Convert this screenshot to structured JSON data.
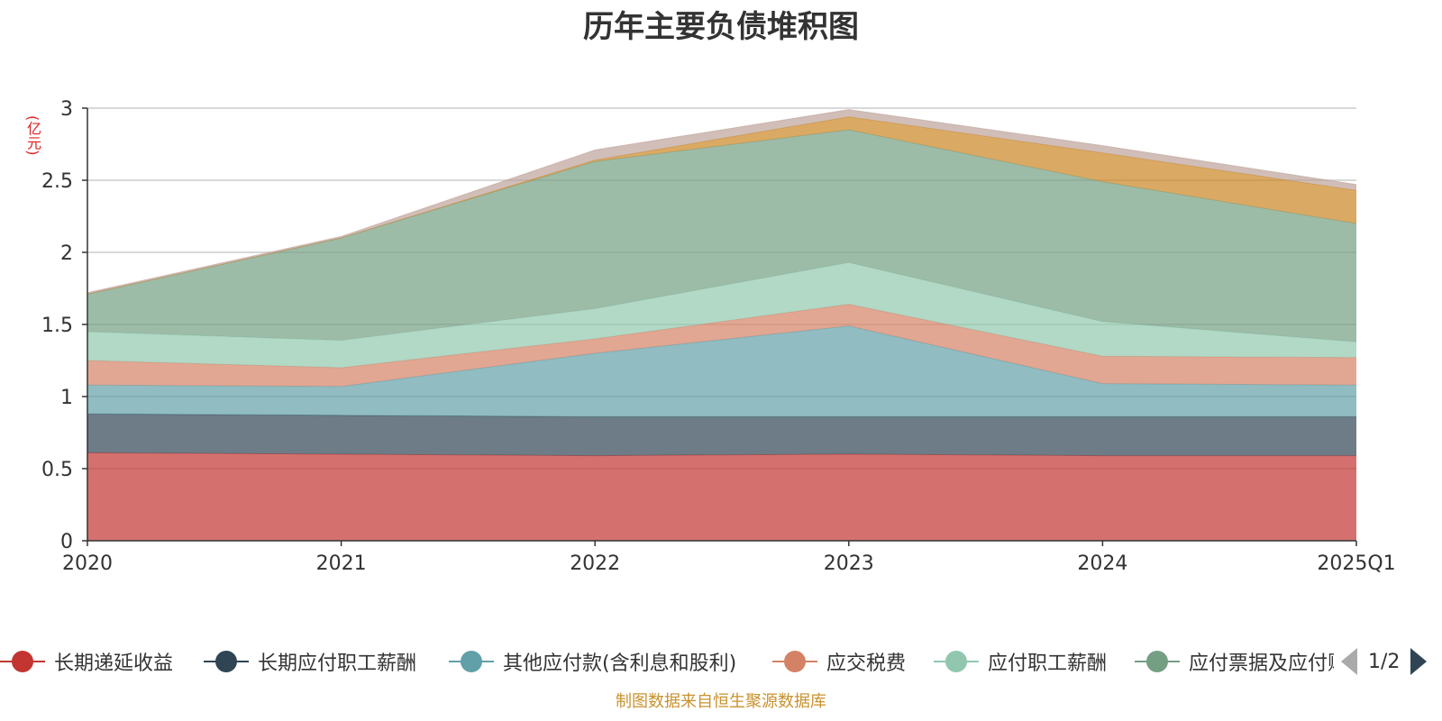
{
  "chart_data": {
    "type": "area",
    "stacked": true,
    "title": "历年主要负债堆积图",
    "unit_label": "(亿元)",
    "categories": [
      "2020",
      "2021",
      "2022",
      "2023",
      "2024",
      "2025Q1"
    ],
    "ylim": [
      0,
      3
    ],
    "yticks": [
      "0",
      "0.5",
      "1",
      "1.5",
      "2",
      "2.5",
      "3"
    ],
    "grid": true,
    "legend_position": "bottom",
    "series": [
      {
        "name": "长期递延收益",
        "color": "#c23531",
        "values": [
          0.61,
          0.6,
          0.59,
          0.6,
          0.59,
          0.59
        ]
      },
      {
        "name": "长期应付职工薪酬",
        "color": "#2f4554",
        "values": [
          0.27,
          0.27,
          0.27,
          0.26,
          0.27,
          0.27
        ]
      },
      {
        "name": "其他应付款(含利息和股利)",
        "color": "#61a0a8",
        "values": [
          0.2,
          0.2,
          0.44,
          0.63,
          0.23,
          0.22
        ]
      },
      {
        "name": "应交税费",
        "color": "#d48265",
        "values": [
          0.17,
          0.13,
          0.1,
          0.15,
          0.19,
          0.19
        ]
      },
      {
        "name": "应付职工薪酬",
        "color": "#91c7ae",
        "values": [
          0.2,
          0.19,
          0.21,
          0.29,
          0.24,
          0.11
        ]
      },
      {
        "name": "应付票据及应付账款",
        "color": "#749f83",
        "values": [
          0.26,
          0.71,
          1.02,
          0.92,
          0.97,
          0.82
        ]
      },
      {
        "name": "",
        "color": "#ca8622",
        "values": [
          0.0,
          0.0,
          0.01,
          0.09,
          0.2,
          0.23
        ]
      },
      {
        "name": "",
        "color": "#bda29a",
        "values": [
          0.01,
          0.01,
          0.07,
          0.05,
          0.05,
          0.04
        ]
      }
    ]
  },
  "legend": {
    "pager_text": "1/2"
  },
  "source_note": "制图数据来自恒生聚源数据库"
}
